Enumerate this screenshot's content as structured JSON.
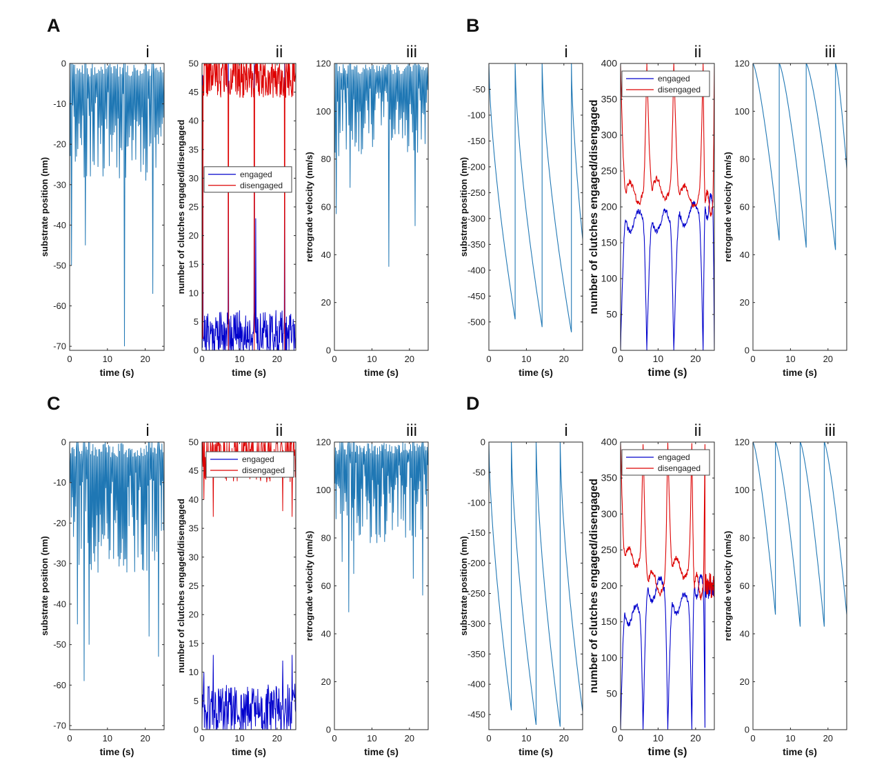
{
  "colors": {
    "substrate": "#1f77b4",
    "engaged": "#0000cc",
    "disengaged": "#dd0000",
    "axis": "#262626"
  },
  "chart_data": [
    {
      "panel": "A",
      "sub": "i",
      "type": "line",
      "xlabel": "time (s)",
      "ylabel": "substrate position (nm)",
      "xlim": [
        0,
        25
      ],
      "ylim": [
        -71,
        0
      ],
      "xticks": [
        0,
        10,
        20
      ],
      "yticks": [
        0,
        -10,
        -20,
        -30,
        -40,
        -50,
        -60,
        -70
      ],
      "series": [
        {
          "kind": "noisy",
          "seed": 11,
          "n": 150,
          "top": 0,
          "low": -18,
          "spread": 22,
          "spikes": [
            [
              0.5,
              -50
            ],
            [
              4.2,
              -45
            ],
            [
              14.5,
              -70
            ],
            [
              22,
              -57
            ]
          ]
        }
      ]
    },
    {
      "panel": "A",
      "sub": "ii",
      "type": "line",
      "xlabel": "time (s)",
      "ylabel": "number of clutches engaged/disengaged",
      "xlim": [
        0,
        25
      ],
      "ylim": [
        0,
        50
      ],
      "xticks": [
        0,
        10,
        20
      ],
      "yticks": [
        0,
        5,
        10,
        15,
        20,
        25,
        30,
        35,
        40,
        45,
        50
      ],
      "legend": {
        "position": "center-left",
        "entries": [
          "engaged",
          "disengaged"
        ]
      },
      "series": [
        {
          "name": "engaged",
          "kind": "band",
          "seed": 21,
          "n": 260,
          "center": 3,
          "spread": 4,
          "spikes": [
            [
              0.2,
              48
            ],
            [
              7.0,
              50
            ],
            [
              13.9,
              50
            ],
            [
              14.3,
              23
            ],
            [
              22.0,
              50
            ]
          ]
        },
        {
          "name": "disengaged",
          "kind": "band",
          "seed": 22,
          "n": 260,
          "center": 48,
          "spread": 4,
          "spikes": [
            [
              0.2,
              2
            ],
            [
              7.0,
              0
            ],
            [
              13.9,
              0
            ],
            [
              22.0,
              0
            ]
          ]
        }
      ]
    },
    {
      "panel": "A",
      "sub": "iii",
      "type": "line",
      "xlabel": "time (s)",
      "ylabel": "retrograde velocity (nm/s)",
      "xlim": [
        0,
        25
      ],
      "ylim": [
        0,
        120
      ],
      "xticks": [
        0,
        10,
        20
      ],
      "yticks": [
        0,
        20,
        40,
        60,
        80,
        100,
        120
      ],
      "series": [
        {
          "kind": "noisy",
          "seed": 31,
          "n": 150,
          "top": 120,
          "low": 95,
          "spread": 30,
          "spikes": [
            [
              0.5,
              57
            ],
            [
              4.2,
              68
            ],
            [
              14.5,
              35
            ],
            [
              21.5,
              52
            ]
          ]
        }
      ]
    },
    {
      "panel": "B",
      "sub": "i",
      "type": "line",
      "xlabel": "time (s)",
      "ylabel": "substrate position (nm)",
      "xlim": [
        0,
        25
      ],
      "ylim": [
        -555,
        0
      ],
      "xticks": [
        0,
        10,
        20
      ],
      "yticks": [
        -50,
        -100,
        -150,
        -200,
        -250,
        -300,
        -350,
        -400,
        -450,
        -500
      ],
      "series": [
        {
          "kind": "cycle",
          "bounds": [
            0,
            7.0,
            14.2,
            22.0,
            25
          ],
          "start": [
            0,
            0,
            0,
            0
          ],
          "end": [
            -495,
            -510,
            -520,
            -340
          ],
          "curve": 0.65
        }
      ]
    },
    {
      "panel": "B",
      "sub": "ii",
      "type": "line",
      "xlabel": "time (s)",
      "ylabel": "number of clutches engaged/disengaged",
      "xlim": [
        0,
        25
      ],
      "ylim": [
        0,
        400
      ],
      "xticks": [
        0,
        10,
        20
      ],
      "yticks": [
        0,
        50,
        100,
        150,
        200,
        250,
        300,
        350,
        400
      ],
      "legend": {
        "position": "top-left",
        "entries": [
          "engaged",
          "disengaged"
        ]
      },
      "series": [
        {
          "name": "engaged",
          "kind": "hump",
          "bounds": [
            0,
            7.0,
            14.2,
            22.0,
            25
          ],
          "plateau": [
            180,
            180,
            190,
            200
          ],
          "seed": 41
        },
        {
          "name": "disengaged",
          "kind": "hump",
          "invert": true,
          "bounds": [
            0,
            7.0,
            14.2,
            22.0,
            25
          ],
          "plateau": [
            220,
            225,
            215,
            205
          ],
          "seed": 42
        }
      ]
    },
    {
      "panel": "B",
      "sub": "iii",
      "type": "line",
      "xlabel": "time (s)",
      "ylabel": "retrograde velocity (nm/s)",
      "xlim": [
        0,
        25
      ],
      "ylim": [
        0,
        120
      ],
      "xticks": [
        0,
        10,
        20
      ],
      "yticks": [
        0,
        20,
        40,
        60,
        80,
        100,
        120
      ],
      "series": [
        {
          "kind": "cycle",
          "bounds": [
            0,
            7.0,
            14.2,
            22.0,
            25
          ],
          "start": [
            120,
            120,
            120,
            120
          ],
          "end": [
            46,
            43,
            42,
            76
          ],
          "curve": 1.35
        }
      ]
    },
    {
      "panel": "C",
      "sub": "i",
      "type": "line",
      "xlabel": "time (s)",
      "ylabel": "substrate position (nm)",
      "xlim": [
        0,
        25
      ],
      "ylim": [
        -71,
        0
      ],
      "xticks": [
        0,
        10,
        20
      ],
      "yticks": [
        0,
        -10,
        -20,
        -30,
        -40,
        -50,
        -60,
        -70
      ],
      "series": [
        {
          "kind": "noisy",
          "seed": 51,
          "n": 170,
          "top": 0,
          "low": -20,
          "spread": 25,
          "spikes": [
            [
              2.0,
              -45
            ],
            [
              3.8,
              -59
            ],
            [
              5.2,
              -50
            ],
            [
              21.0,
              -48
            ],
            [
              23.5,
              -53
            ]
          ]
        }
      ]
    },
    {
      "panel": "C",
      "sub": "ii",
      "type": "line",
      "xlabel": "time (s)",
      "ylabel": "number of clutches engaged/disengaged",
      "xlim": [
        0,
        25
      ],
      "ylim": [
        0,
        50
      ],
      "xticks": [
        0,
        10,
        20
      ],
      "yticks": [
        0,
        5,
        10,
        15,
        20,
        25,
        30,
        35,
        40,
        45,
        50
      ],
      "legend": {
        "position": "top-right",
        "entries": [
          "engaged",
          "disengaged"
        ]
      },
      "series": [
        {
          "name": "engaged",
          "kind": "band",
          "seed": 61,
          "n": 200,
          "center": 3,
          "spread": 5,
          "spikes": [
            [
              0.5,
              10
            ],
            [
              3.0,
              13
            ],
            [
              21.5,
              12
            ],
            [
              24.0,
              13
            ]
          ]
        },
        {
          "name": "disengaged",
          "kind": "band",
          "seed": 62,
          "n": 200,
          "center": 48,
          "spread": 5,
          "spikes": [
            [
              0.5,
              40
            ],
            [
              3.0,
              37
            ],
            [
              21.5,
              38
            ],
            [
              24.0,
              37
            ]
          ]
        }
      ]
    },
    {
      "panel": "C",
      "sub": "iii",
      "type": "line",
      "xlabel": "time (s)",
      "ylabel": "retrograde velocity (nm/s)",
      "xlim": [
        0,
        25
      ],
      "ylim": [
        0,
        120
      ],
      "xticks": [
        0,
        10,
        20
      ],
      "yticks": [
        0,
        20,
        40,
        60,
        80,
        100,
        120
      ],
      "series": [
        {
          "kind": "noisy",
          "seed": 71,
          "n": 170,
          "top": 120,
          "low": 95,
          "spread": 35,
          "spikes": [
            [
              2.0,
              70
            ],
            [
              3.8,
              49
            ],
            [
              5.2,
              65
            ],
            [
              21.0,
              63
            ],
            [
              23.5,
              56
            ]
          ]
        }
      ]
    },
    {
      "panel": "D",
      "sub": "i",
      "type": "line",
      "xlabel": "time (s)",
      "ylabel": "substrate position (nm)",
      "xlim": [
        0,
        25
      ],
      "ylim": [
        -475,
        0
      ],
      "xticks": [
        0,
        10,
        20
      ],
      "yticks": [
        0,
        -50,
        -100,
        -150,
        -200,
        -250,
        -300,
        -350,
        -400,
        -450
      ],
      "series": [
        {
          "kind": "cycle",
          "bounds": [
            0,
            6.0,
            12.6,
            19.0,
            25
          ],
          "start": [
            0,
            0,
            0,
            0
          ],
          "end": [
            -443,
            -467,
            -470,
            -445
          ],
          "curve": 0.65
        }
      ]
    },
    {
      "panel": "D",
      "sub": "ii",
      "type": "line",
      "xlabel": "time (s)",
      "ylabel": "number of clutches engaged/disengaged",
      "xlim": [
        0,
        25
      ],
      "ylim": [
        0,
        400
      ],
      "xticks": [
        0,
        10,
        20
      ],
      "yticks": [
        0,
        50,
        100,
        150,
        200,
        250,
        300,
        350,
        400
      ],
      "legend": {
        "position": "top-left",
        "entries": [
          "engaged",
          "disengaged"
        ]
      },
      "series": [
        {
          "name": "engaged",
          "kind": "hump",
          "bounds": [
            0,
            6.0,
            12.6,
            19.0,
            22.5
          ],
          "plateau": [
            160,
            195,
            175,
            200
          ],
          "seed": 81,
          "tail": [
            22.5,
            25,
            200,
            18
          ]
        },
        {
          "name": "disengaged",
          "kind": "hump",
          "invert": true,
          "bounds": [
            0,
            6.0,
            12.6,
            19.0,
            22.5
          ],
          "plateau": [
            240,
            205,
            225,
            200
          ],
          "seed": 82,
          "tail": [
            22.5,
            25,
            200,
            18
          ]
        }
      ]
    },
    {
      "panel": "D",
      "sub": "iii",
      "type": "line",
      "xlabel": "time (s)",
      "ylabel": "retrograde velocity (nm/s)",
      "xlim": [
        0,
        25
      ],
      "ylim": [
        0,
        120
      ],
      "xticks": [
        0,
        10,
        20
      ],
      "yticks": [
        0,
        20,
        40,
        60,
        80,
        100,
        120
      ],
      "series": [
        {
          "kind": "cycle",
          "bounds": [
            0,
            6.0,
            12.6,
            19.0,
            25
          ],
          "start": [
            120,
            120,
            120,
            120
          ],
          "end": [
            48,
            43,
            43,
            48
          ],
          "curve": 1.35
        }
      ]
    }
  ]
}
